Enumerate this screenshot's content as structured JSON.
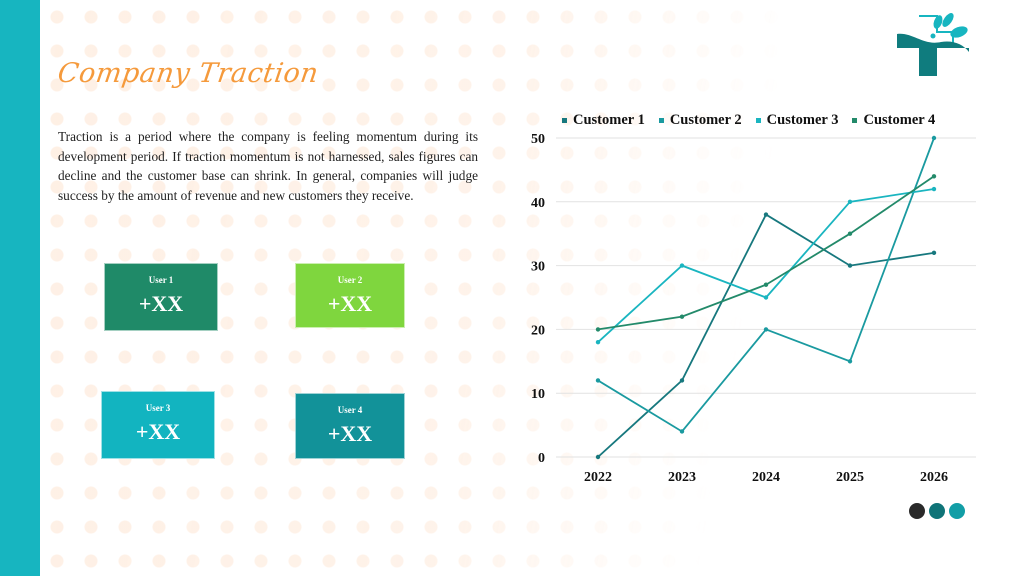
{
  "slide": {
    "title": "Company Traction",
    "body": "Traction is a period where the company is feeling  momentum during its development period. If traction  momentum is not harnessed, sales figures can decline  and the customer base can shrink. In general, companies  will judge success by the amount of revenue and new customers they receive.",
    "accent_color": "#17b5c0",
    "title_color": "#f59a3c"
  },
  "cards": [
    {
      "label": "User 1",
      "value": "+XX",
      "color": "#1f8a68"
    },
    {
      "label": "User 2",
      "value": "+XX",
      "color": "#7fd63e"
    },
    {
      "label": "User 3",
      "value": "+XX",
      "color": "#12b4c0"
    },
    {
      "label": "User 4",
      "value": "+XX",
      "color": "#129299"
    }
  ],
  "logo": {
    "icon": "medical-cross-leaf-logo-icon"
  },
  "pager": {
    "dots": [
      "#2a2a2a",
      "#0f7478",
      "#129ea6"
    ]
  },
  "chart_data": {
    "type": "line",
    "title": "",
    "xlabel": "",
    "ylabel": "",
    "categories": [
      "2022",
      "2023",
      "2024",
      "2025",
      "2026"
    ],
    "series": [
      {
        "name": "Customer 1",
        "color": "#17787e",
        "values": [
          0,
          12,
          38,
          30,
          32
        ]
      },
      {
        "name": "Customer 2",
        "color": "#1a9aa0",
        "values": [
          12,
          4,
          20,
          15,
          50
        ]
      },
      {
        "name": "Customer 3",
        "color": "#1ab5c0",
        "values": [
          18,
          30,
          25,
          40,
          42
        ]
      },
      {
        "name": "Customer 4",
        "color": "#238a6a",
        "values": [
          20,
          22,
          27,
          35,
          44
        ]
      }
    ],
    "yticks": [
      0,
      10,
      20,
      30,
      40,
      50
    ],
    "ylim": [
      0,
      50
    ],
    "grid": true,
    "legend_position": "top"
  }
}
